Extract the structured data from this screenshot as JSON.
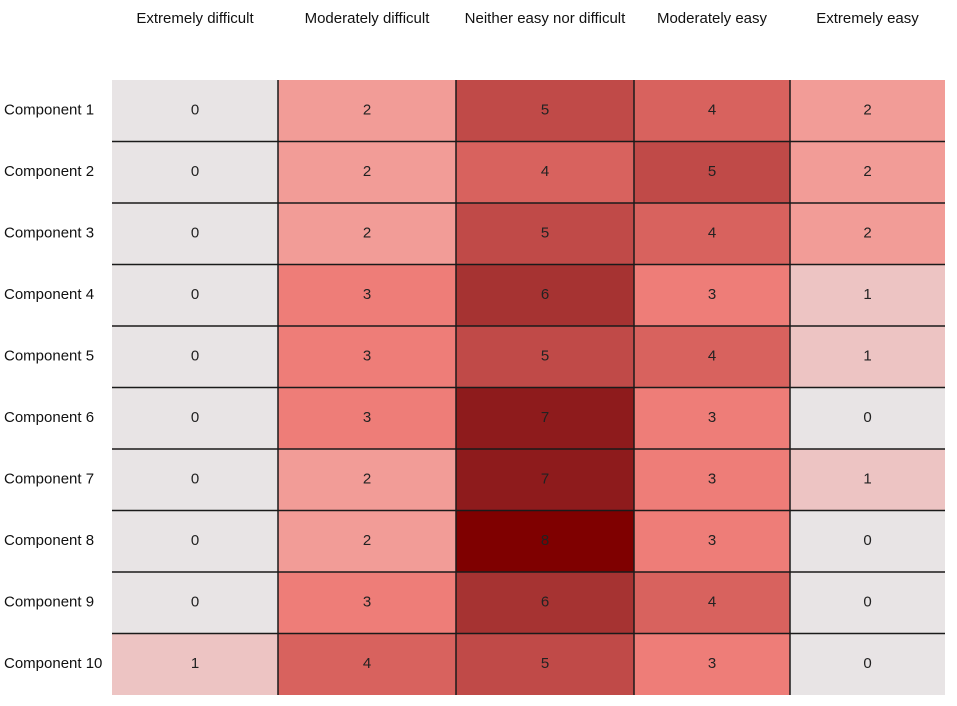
{
  "chart_data": {
    "type": "heatmap",
    "title": "",
    "xlabel": "",
    "ylabel": "",
    "columns": [
      "Extremely difficult",
      "Moderately difficult",
      "Neither easy nor difficult",
      "Moderately easy",
      "Extremely easy"
    ],
    "rows": [
      "Component 1",
      "Component 2",
      "Component 3",
      "Component 4",
      "Component 5",
      "Component 6",
      "Component 7",
      "Component 8",
      "Component 9",
      "Component 10"
    ],
    "values": [
      [
        0,
        2,
        5,
        4,
        2
      ],
      [
        0,
        2,
        4,
        5,
        2
      ],
      [
        0,
        2,
        5,
        4,
        2
      ],
      [
        0,
        3,
        6,
        3,
        1
      ],
      [
        0,
        3,
        5,
        4,
        1
      ],
      [
        0,
        3,
        7,
        3,
        0
      ],
      [
        0,
        2,
        7,
        3,
        1
      ],
      [
        0,
        2,
        8,
        3,
        0
      ],
      [
        0,
        3,
        6,
        4,
        0
      ],
      [
        1,
        4,
        5,
        3,
        0
      ]
    ],
    "value_range": [
      0,
      8
    ],
    "color_scale": {
      "0": "#e8e4e5",
      "1": "#edc4c3",
      "2": "#f29c97",
      "3": "#ee7d78",
      "4": "#d8625e",
      "5": "#c04a48",
      "6": "#a63332",
      "7": "#8e1b1c",
      "8": "#7f0000"
    },
    "grid": true,
    "legend": "none"
  }
}
